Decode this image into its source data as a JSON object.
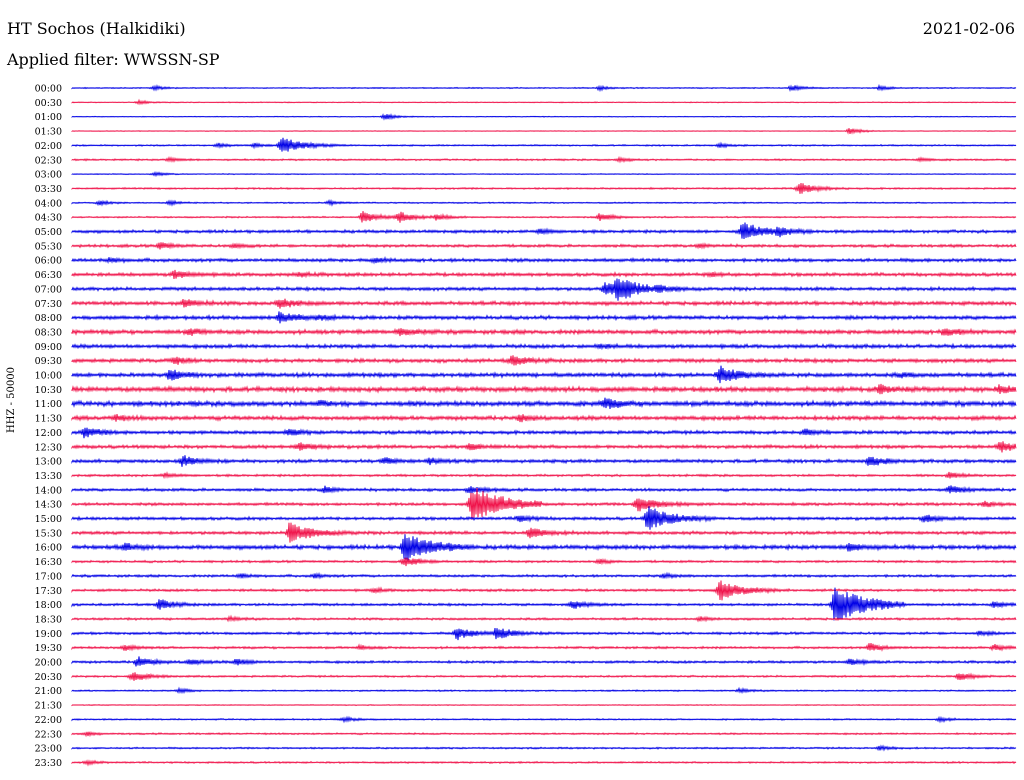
{
  "header": {
    "station": "HT Sochos (Halkidiki)",
    "date": "2021-02-06",
    "filter": "Applied filter: WWSSN-SP"
  },
  "chart_data": {
    "type": "line",
    "title": "HT Sochos (Halkidiki)",
    "subtitle": "Applied filter: WWSSN-SP",
    "date": "2021-02-06",
    "ylabel": "HHZ - 50000",
    "xlabel": "",
    "grid": false,
    "colors": [
      "#0000e6",
      "#f0144b"
    ],
    "rows": [
      {
        "label": "00:00",
        "noise": 0.6,
        "events": [
          [
            155,
            2
          ],
          [
            600,
            2
          ],
          [
            792,
            3
          ],
          [
            880,
            2
          ]
        ]
      },
      {
        "label": "00:30",
        "noise": 0.5,
        "events": [
          [
            140,
            2
          ]
        ]
      },
      {
        "label": "01:00",
        "noise": 0.4,
        "events": [
          [
            385,
            3
          ]
        ]
      },
      {
        "label": "01:30",
        "noise": 0.4,
        "events": [
          [
            850,
            3
          ]
        ]
      },
      {
        "label": "02:00",
        "noise": 0.8,
        "events": [
          [
            218,
            2
          ],
          [
            255,
            2
          ],
          [
            282,
            9
          ],
          [
            720,
            2
          ]
        ]
      },
      {
        "label": "02:30",
        "noise": 0.9,
        "events": [
          [
            170,
            2
          ],
          [
            620,
            2
          ],
          [
            920,
            2
          ]
        ]
      },
      {
        "label": "03:00",
        "noise": 0.5,
        "events": [
          [
            155,
            2
          ]
        ]
      },
      {
        "label": "03:30",
        "noise": 0.9,
        "events": [
          [
            800,
            6
          ]
        ]
      },
      {
        "label": "04:00",
        "noise": 0.7,
        "events": [
          [
            100,
            2
          ],
          [
            170,
            2
          ],
          [
            330,
            2
          ]
        ]
      },
      {
        "label": "04:30",
        "noise": 0.8,
        "events": [
          [
            363,
            6
          ],
          [
            400,
            5
          ],
          [
            437,
            3
          ],
          [
            600,
            4
          ]
        ]
      },
      {
        "label": "05:00",
        "noise": 1.6,
        "events": [
          [
            743,
            9
          ],
          [
            778,
            4
          ],
          [
            540,
            2
          ]
        ]
      },
      {
        "label": "05:30",
        "noise": 1.5,
        "events": [
          [
            160,
            3
          ],
          [
            235,
            2
          ],
          [
            700,
            2
          ]
        ]
      },
      {
        "label": "06:00",
        "noise": 1.8,
        "events": [
          [
            110,
            2
          ],
          [
            375,
            2
          ]
        ]
      },
      {
        "label": "06:30",
        "noise": 1.8,
        "events": [
          [
            175,
            4
          ],
          [
            300,
            2
          ],
          [
            710,
            2
          ]
        ]
      },
      {
        "label": "07:00",
        "noise": 1.8,
        "events": [
          [
            605,
            6
          ],
          [
            618,
            11
          ],
          [
            660,
            2
          ]
        ]
      },
      {
        "label": "07:30",
        "noise": 2.0,
        "events": [
          [
            185,
            4
          ],
          [
            280,
            5
          ]
        ]
      },
      {
        "label": "08:00",
        "noise": 2.0,
        "events": [
          [
            280,
            6
          ],
          [
            320,
            2
          ]
        ]
      },
      {
        "label": "08:30",
        "noise": 2.2,
        "events": [
          [
            190,
            3
          ],
          [
            400,
            4
          ],
          [
            945,
            4
          ]
        ]
      },
      {
        "label": "09:00",
        "noise": 2.0,
        "events": [
          [
            600,
            2
          ]
        ]
      },
      {
        "label": "09:30",
        "noise": 2.0,
        "events": [
          [
            175,
            3
          ],
          [
            512,
            5
          ]
        ]
      },
      {
        "label": "10:00",
        "noise": 2.2,
        "events": [
          [
            170,
            5
          ],
          [
            720,
            8
          ],
          [
            900,
            2
          ]
        ]
      },
      {
        "label": "10:30",
        "noise": 2.6,
        "events": [
          [
            880,
            4
          ],
          [
            1000,
            4
          ]
        ]
      },
      {
        "label": "11:00",
        "noise": 2.6,
        "events": [
          [
            605,
            5
          ],
          [
            320,
            2
          ]
        ]
      },
      {
        "label": "11:30",
        "noise": 2.2,
        "events": [
          [
            115,
            3
          ],
          [
            520,
            3
          ]
        ]
      },
      {
        "label": "12:00",
        "noise": 1.8,
        "events": [
          [
            85,
            5
          ],
          [
            290,
            3
          ],
          [
            805,
            3
          ]
        ]
      },
      {
        "label": "12:30",
        "noise": 1.8,
        "events": [
          [
            300,
            4
          ],
          [
            470,
            3
          ],
          [
            1000,
            5
          ]
        ]
      },
      {
        "label": "13:00",
        "noise": 1.8,
        "events": [
          [
            183,
            5
          ],
          [
            385,
            3
          ],
          [
            430,
            3
          ],
          [
            870,
            5
          ]
        ]
      },
      {
        "label": "13:30",
        "noise": 1.2,
        "events": [
          [
            165,
            2
          ],
          [
            950,
            3
          ]
        ]
      },
      {
        "label": "14:00",
        "noise": 1.5,
        "events": [
          [
            325,
            3
          ],
          [
            470,
            4
          ],
          [
            950,
            4
          ]
        ]
      },
      {
        "label": "14:30",
        "noise": 1.5,
        "events": [
          [
            472,
            18
          ],
          [
            638,
            8
          ],
          [
            985,
            3
          ]
        ]
      },
      {
        "label": "15:00",
        "noise": 1.6,
        "events": [
          [
            648,
            12
          ],
          [
            520,
            3
          ],
          [
            925,
            4
          ]
        ]
      },
      {
        "label": "15:30",
        "noise": 1.7,
        "events": [
          [
            290,
            10
          ],
          [
            530,
            5
          ]
        ]
      },
      {
        "label": "16:00",
        "noise": 2.2,
        "events": [
          [
            405,
            14
          ],
          [
            850,
            4
          ],
          [
            125,
            3
          ]
        ]
      },
      {
        "label": "16:30",
        "noise": 1.2,
        "events": [
          [
            405,
            5
          ],
          [
            600,
            2
          ]
        ]
      },
      {
        "label": "17:00",
        "noise": 1.3,
        "events": [
          [
            240,
            2
          ],
          [
            315,
            2
          ],
          [
            665,
            2
          ]
        ]
      },
      {
        "label": "17:30",
        "noise": 1.3,
        "events": [
          [
            720,
            10
          ],
          [
            375,
            2
          ]
        ]
      },
      {
        "label": "18:00",
        "noise": 1.3,
        "events": [
          [
            160,
            5
          ],
          [
            573,
            4
          ],
          [
            835,
            18
          ],
          [
            995,
            3
          ]
        ]
      },
      {
        "label": "18:30",
        "noise": 1.2,
        "events": [
          [
            230,
            2
          ],
          [
            700,
            2
          ]
        ]
      },
      {
        "label": "19:00",
        "noise": 1.3,
        "events": [
          [
            457,
            6
          ],
          [
            497,
            6
          ],
          [
            980,
            2
          ]
        ]
      },
      {
        "label": "19:30",
        "noise": 1.2,
        "events": [
          [
            125,
            3
          ],
          [
            360,
            2
          ],
          [
            870,
            4
          ],
          [
            995,
            3
          ]
        ]
      },
      {
        "label": "20:00",
        "noise": 1.3,
        "events": [
          [
            138,
            5
          ],
          [
            190,
            3
          ],
          [
            237,
            3
          ],
          [
            850,
            3
          ]
        ]
      },
      {
        "label": "20:30",
        "noise": 1.0,
        "events": [
          [
            133,
            5
          ],
          [
            960,
            4
          ]
        ]
      },
      {
        "label": "21:00",
        "noise": 0.8,
        "events": [
          [
            180,
            2
          ],
          [
            740,
            2
          ]
        ]
      },
      {
        "label": "21:30",
        "noise": 0.5,
        "events": []
      },
      {
        "label": "22:00",
        "noise": 0.8,
        "events": [
          [
            345,
            2
          ],
          [
            940,
            2
          ]
        ]
      },
      {
        "label": "22:30",
        "noise": 0.9,
        "events": [
          [
            87,
            2
          ]
        ]
      },
      {
        "label": "23:00",
        "noise": 0.9,
        "events": [
          [
            880,
            2
          ]
        ]
      },
      {
        "label": "23:30",
        "noise": 0.9,
        "events": [
          [
            87,
            2
          ]
        ]
      }
    ]
  }
}
